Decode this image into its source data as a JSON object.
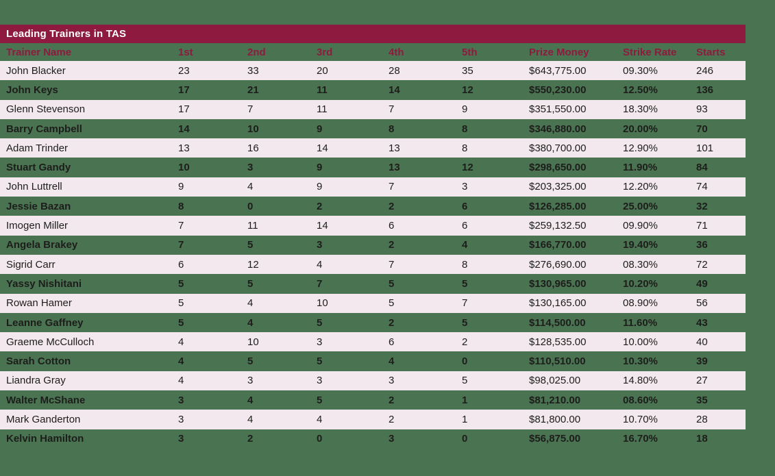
{
  "title": "Leading Trainers in TAS",
  "colors": {
    "background_green": "#4a7351",
    "title_bar_maroon": "#8e1b3f",
    "header_text_maroon": "#8e1b3f",
    "row_pink": "#f2e8ed",
    "row_text_dark": "#1d1d1b",
    "title_text_white": "#ffffff"
  },
  "table": {
    "columns": [
      "Trainer Name",
      "1st",
      "2nd",
      "3rd",
      "4th",
      "5th",
      "Prize Money",
      "Strike Rate",
      "Starts"
    ],
    "rows": [
      [
        "John Blacker",
        "23",
        "33",
        "20",
        "28",
        "35",
        "$643,775.00",
        "09.30%",
        "246"
      ],
      [
        "John Keys",
        "17",
        "21",
        "11",
        "14",
        "12",
        "$550,230.00",
        "12.50%",
        "136"
      ],
      [
        "Glenn Stevenson",
        "17",
        "7",
        "11",
        "7",
        "9",
        "$351,550.00",
        "18.30%",
        "93"
      ],
      [
        "Barry Campbell",
        "14",
        "10",
        "9",
        "8",
        "8",
        "$346,880.00",
        "20.00%",
        "70"
      ],
      [
        "Adam Trinder",
        "13",
        "16",
        "14",
        "13",
        "8",
        "$380,700.00",
        "12.90%",
        "101"
      ],
      [
        "Stuart Gandy",
        "10",
        "3",
        "9",
        "13",
        "12",
        "$298,650.00",
        "11.90%",
        "84"
      ],
      [
        "John Luttrell",
        "9",
        "4",
        "9",
        "7",
        "3",
        "$203,325.00",
        "12.20%",
        "74"
      ],
      [
        "Jessie Bazan",
        "8",
        "0",
        "2",
        "2",
        "6",
        "$126,285.00",
        "25.00%",
        "32"
      ],
      [
        "Imogen Miller",
        "7",
        "11",
        "14",
        "6",
        "6",
        "$259,132.50",
        "09.90%",
        "71"
      ],
      [
        "Angela Brakey",
        "7",
        "5",
        "3",
        "2",
        "4",
        "$166,770.00",
        "19.40%",
        "36"
      ],
      [
        "Sigrid Carr",
        "6",
        "12",
        "4",
        "7",
        "8",
        "$276,690.00",
        "08.30%",
        "72"
      ],
      [
        "Yassy Nishitani",
        "5",
        "5",
        "7",
        "5",
        "5",
        "$130,965.00",
        "10.20%",
        "49"
      ],
      [
        "Rowan Hamer",
        "5",
        "4",
        "10",
        "5",
        "7",
        "$130,165.00",
        "08.90%",
        "56"
      ],
      [
        "Leanne Gaffney",
        "5",
        "4",
        "5",
        "2",
        "5",
        "$114,500.00",
        "11.60%",
        "43"
      ],
      [
        "Graeme McCulloch",
        "4",
        "10",
        "3",
        "6",
        "2",
        "$128,535.00",
        "10.00%",
        "40"
      ],
      [
        "Sarah Cotton",
        "4",
        "5",
        "5",
        "4",
        "0",
        "$110,510.00",
        "10.30%",
        "39"
      ],
      [
        "Liandra Gray",
        "4",
        "3",
        "3",
        "3",
        "5",
        "$98,025.00",
        "14.80%",
        "27"
      ],
      [
        "Walter McShane",
        "3",
        "4",
        "5",
        "2",
        "1",
        "$81,210.00",
        "08.60%",
        "35"
      ],
      [
        "Mark Ganderton",
        "3",
        "4",
        "4",
        "2",
        "1",
        "$81,800.00",
        "10.70%",
        "28"
      ],
      [
        "Kelvin Hamilton",
        "3",
        "2",
        "0",
        "3",
        "0",
        "$56,875.00",
        "16.70%",
        "18"
      ]
    ]
  }
}
